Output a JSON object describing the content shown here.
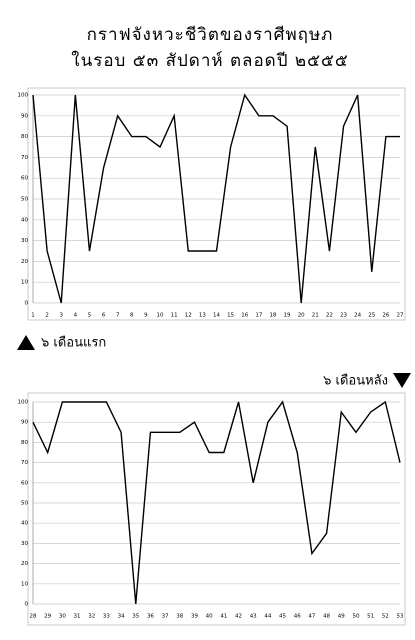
{
  "header": {
    "title_lines": [
      "กราฟจังหวะชีวิตของราศีพฤษภ",
      "ในรอบ ๕๓ สัปดาห์ ตลอดปี ๒๕๕๕"
    ]
  },
  "chart_data": [
    {
      "type": "line",
      "label": "๖ เดือนแรก",
      "color": "#000000",
      "grid": true,
      "x": [
        1,
        2,
        3,
        4,
        5,
        6,
        7,
        8,
        9,
        10,
        11,
        12,
        13,
        14,
        15,
        16,
        17,
        18,
        19,
        20,
        21,
        22,
        23,
        24,
        25,
        26,
        27
      ],
      "values": [
        100,
        25,
        0,
        100,
        25,
        65,
        90,
        80,
        80,
        75,
        90,
        25,
        25,
        25,
        75,
        100,
        90,
        90,
        85,
        0,
        75,
        25,
        85,
        100,
        15,
        80,
        80
      ],
      "xlim": [
        1,
        27
      ],
      "ylim": [
        0,
        100
      ],
      "yticks": [
        0,
        10,
        20,
        30,
        40,
        50,
        60,
        70,
        80,
        90,
        100
      ]
    },
    {
      "type": "line",
      "label": "๖ เดือนหลัง",
      "color": "#000000",
      "grid": true,
      "x": [
        28,
        29,
        30,
        31,
        32,
        33,
        34,
        35,
        36,
        37,
        38,
        39,
        40,
        41,
        42,
        43,
        44,
        45,
        46,
        47,
        48,
        49,
        50,
        51,
        52,
        53
      ],
      "values": [
        90,
        75,
        100,
        100,
        100,
        100,
        85,
        0,
        85,
        85,
        85,
        90,
        75,
        75,
        100,
        60,
        90,
        100,
        75,
        25,
        35,
        95,
        85,
        95,
        100,
        70
      ],
      "xlim": [
        28,
        53
      ],
      "ylim": [
        0,
        100
      ],
      "yticks": [
        0,
        10,
        20,
        30,
        40,
        50,
        60,
        70,
        80,
        90,
        100
      ]
    }
  ]
}
